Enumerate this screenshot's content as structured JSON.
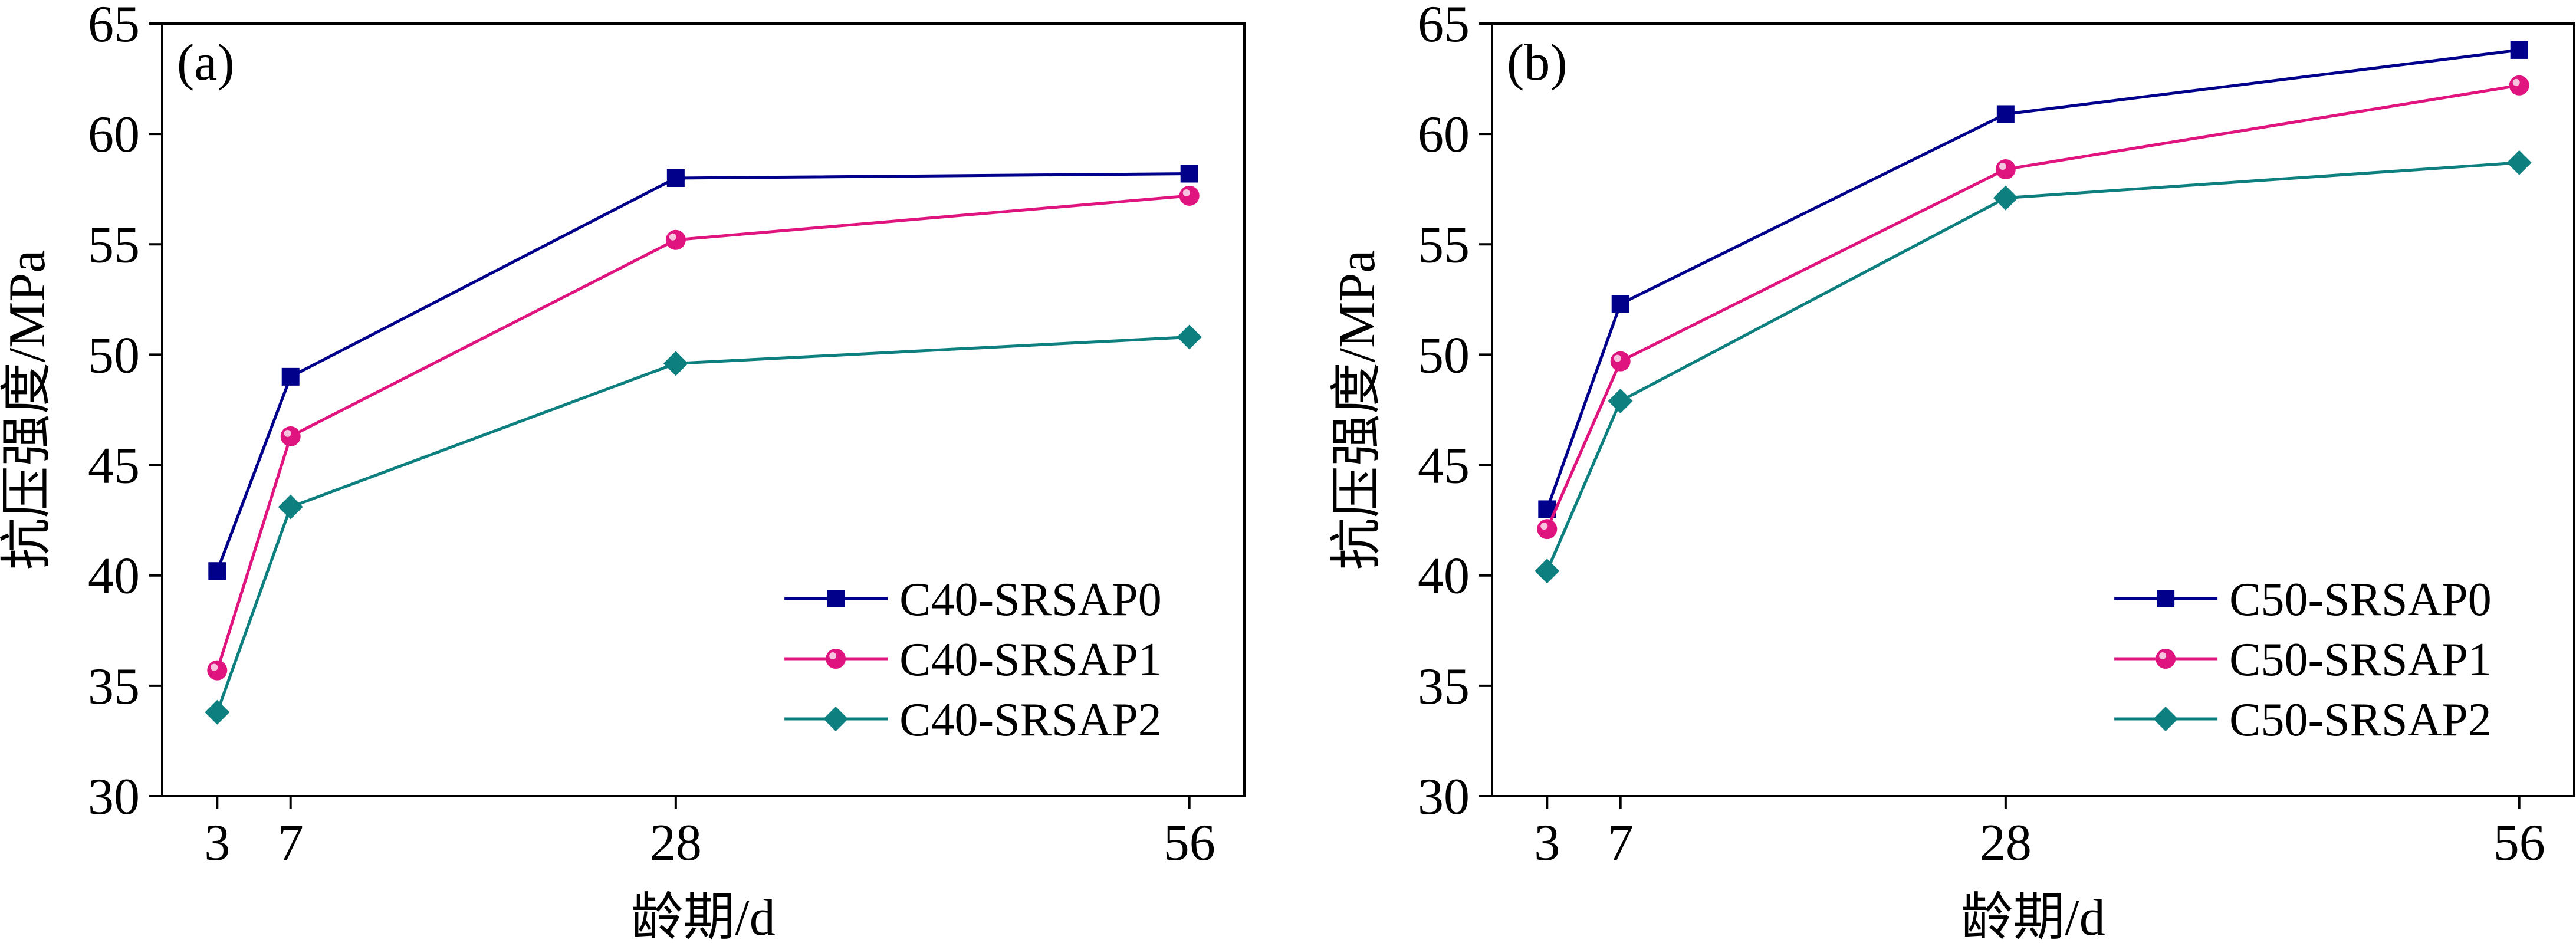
{
  "chart_data": [
    {
      "type": "line",
      "panel_label": "(a)",
      "x": [
        3,
        7,
        28,
        56
      ],
      "xticks": [
        3,
        7,
        28,
        56
      ],
      "xlim": [
        0,
        59
      ],
      "ylim": [
        30,
        65
      ],
      "yticks": [
        30,
        35,
        40,
        45,
        50,
        55,
        60,
        65
      ],
      "xlabel": "龄期/d",
      "ylabel": "抗压强度/MPa",
      "legend_position": "bottom-right",
      "series": [
        {
          "name": "C40-SRSAP0",
          "values": [
            40.2,
            49.0,
            58.0,
            58.2
          ],
          "color": "#00008B",
          "marker": "square"
        },
        {
          "name": "C40-SRSAP1",
          "values": [
            35.7,
            46.3,
            55.2,
            57.2
          ],
          "color": "#E0147F",
          "marker": "circle"
        },
        {
          "name": "C40-SRSAP2",
          "values": [
            33.8,
            43.1,
            49.6,
            50.8
          ],
          "color": "#0E7F7F",
          "marker": "diamond"
        }
      ]
    },
    {
      "type": "line",
      "panel_label": "(b)",
      "x": [
        3,
        7,
        28,
        56
      ],
      "xticks": [
        3,
        7,
        28,
        56
      ],
      "xlim": [
        0,
        59
      ],
      "ylim": [
        30,
        65
      ],
      "yticks": [
        30,
        35,
        40,
        45,
        50,
        55,
        60,
        65
      ],
      "xlabel": "龄期/d",
      "ylabel": "抗压强度/MPa",
      "legend_position": "bottom-right",
      "series": [
        {
          "name": "C50-SRSAP0",
          "values": [
            43.0,
            52.3,
            60.9,
            63.8
          ],
          "color": "#00008B",
          "marker": "square"
        },
        {
          "name": "C50-SRSAP1",
          "values": [
            42.1,
            49.7,
            58.4,
            62.2
          ],
          "color": "#E0147F",
          "marker": "circle"
        },
        {
          "name": "C50-SRSAP2",
          "values": [
            40.2,
            47.9,
            57.1,
            58.7
          ],
          "color": "#0E7F7F",
          "marker": "diamond"
        }
      ]
    }
  ]
}
